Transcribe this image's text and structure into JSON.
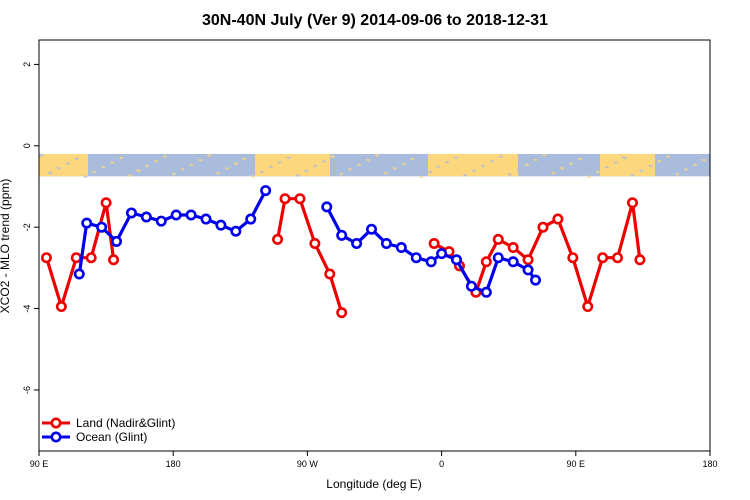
{
  "chart_data": {
    "type": "line",
    "title": "30N-40N July (Ver 9)   2014-09-06 to 2018-12-31",
    "xlabel": "Longitude (deg E)",
    "ylabel": "XCO2 - MLO trend (ppm)",
    "xlim": [
      90,
      540
    ],
    "ylim": [
      -7.5,
      2.6
    ],
    "x_ticks": [
      {
        "value": 90,
        "label": "90 E"
      },
      {
        "value": 180,
        "label": "180"
      },
      {
        "value": 270,
        "label": "90 W"
      },
      {
        "value": 360,
        "label": "0"
      },
      {
        "value": 450,
        "label": "90 E"
      },
      {
        "value": 540,
        "label": "180"
      }
    ],
    "y_ticks": [
      {
        "value": 2,
        "label": "2"
      },
      {
        "value": 0,
        "label": "0"
      },
      {
        "value": -2,
        "label": "-2"
      },
      {
        "value": -4,
        "label": "-4"
      },
      {
        "value": -6,
        "label": "-6"
      }
    ],
    "legend": {
      "position": "bottom-left"
    },
    "land_ocean_strip": {
      "y_top": -0.2,
      "y_bottom": -0.75,
      "ocean_color": "#A9BCDC",
      "land_color": "#FDD77E"
    },
    "series": [
      {
        "name": "Land (Nadir&Glint)",
        "color": "#EE0000",
        "segments": [
          [
            [
              95,
              -2.75
            ],
            [
              105,
              -3.95
            ],
            [
              115,
              -2.75
            ],
            [
              125,
              -2.75
            ],
            [
              135,
              -1.4
            ],
            [
              140,
              -2.8
            ]
          ],
          [
            [
              250,
              -2.3
            ],
            [
              255,
              -1.3
            ],
            [
              265,
              -1.3
            ],
            [
              275,
              -2.4
            ],
            [
              285,
              -3.15
            ],
            [
              293,
              -4.1
            ]
          ],
          [
            [
              355,
              -2.4
            ],
            [
              365,
              -2.6
            ],
            [
              372,
              -2.95
            ],
            [
              383,
              -3.6
            ],
            [
              390,
              -2.85
            ],
            [
              398,
              -2.3
            ],
            [
              408,
              -2.5
            ],
            [
              418,
              -2.8
            ],
            [
              428,
              -2.0
            ],
            [
              438,
              -1.8
            ],
            [
              448,
              -2.75
            ],
            [
              458,
              -3.95
            ],
            [
              468,
              -2.75
            ],
            [
              478,
              -2.75
            ],
            [
              488,
              -1.4
            ],
            [
              493,
              -2.8
            ]
          ]
        ]
      },
      {
        "name": "Ocean (Glint)",
        "color": "#0000EE",
        "segments": [
          [
            [
              117,
              -3.15
            ],
            [
              122,
              -1.9
            ],
            [
              132,
              -2.0
            ],
            [
              142,
              -2.35
            ],
            [
              152,
              -1.65
            ],
            [
              162,
              -1.75
            ],
            [
              172,
              -1.85
            ],
            [
              182,
              -1.7
            ],
            [
              192,
              -1.7
            ],
            [
              202,
              -1.8
            ],
            [
              212,
              -1.95
            ],
            [
              222,
              -2.1
            ],
            [
              232,
              -1.8
            ],
            [
              242,
              -1.1
            ]
          ],
          [
            [
              283,
              -1.5
            ],
            [
              293,
              -2.2
            ],
            [
              303,
              -2.4
            ],
            [
              313,
              -2.05
            ],
            [
              323,
              -2.4
            ],
            [
              333,
              -2.5
            ],
            [
              343,
              -2.75
            ],
            [
              353,
              -2.85
            ],
            [
              360,
              -2.65
            ],
            [
              370,
              -2.8
            ],
            [
              380,
              -3.45
            ],
            [
              390,
              -3.6
            ],
            [
              398,
              -2.75
            ],
            [
              408,
              -2.85
            ],
            [
              418,
              -3.05
            ],
            [
              423,
              -3.3
            ]
          ]
        ]
      }
    ]
  }
}
